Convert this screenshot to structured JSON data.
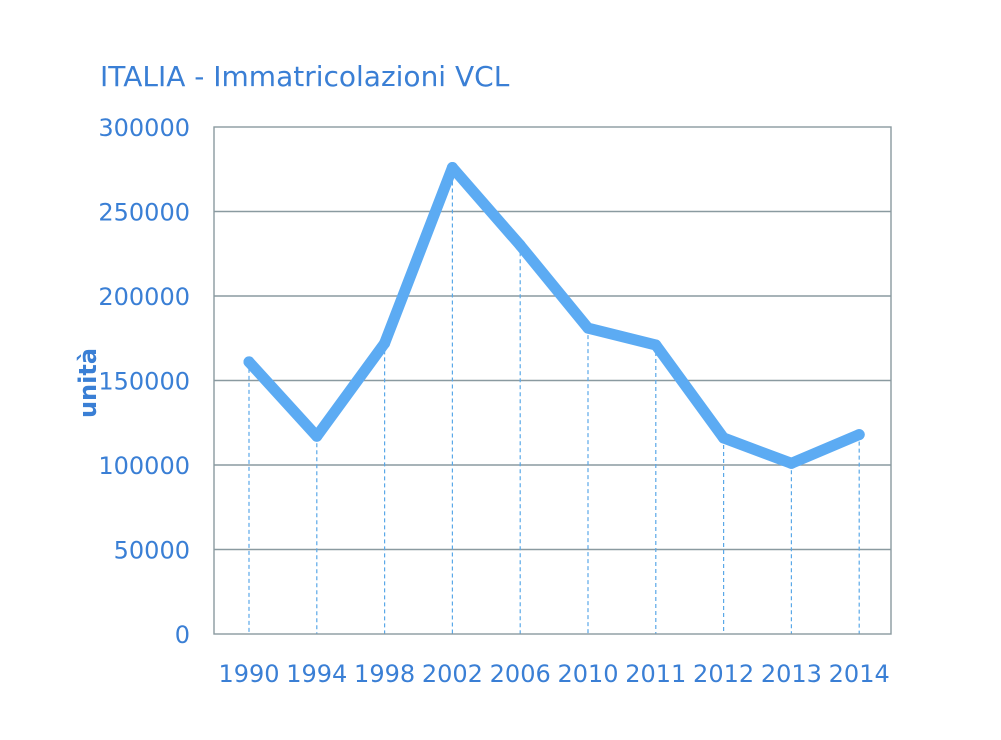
{
  "colors": {
    "text": "#3a7fd5",
    "series": "#5cabf3",
    "grid": "#8a9aa0",
    "drop_line": "#5aa8e8",
    "background": "#ffffff"
  },
  "chart_data": {
    "type": "line",
    "title": "ITALIA - Immatricolazioni VCL",
    "xlabel": "",
    "ylabel": "unità",
    "categories": [
      "1990",
      "1994",
      "1998",
      "2002",
      "2006",
      "2010",
      "2011",
      "2012",
      "2013",
      "2014"
    ],
    "series": [
      {
        "values": [
          161000,
          117000,
          172000,
          276000,
          230000,
          181000,
          171000,
          116000,
          101000,
          118000
        ]
      }
    ],
    "ylim": [
      0,
      300000
    ],
    "yticks": [
      "0",
      "50000",
      "100000",
      "150000",
      "200000",
      "250000",
      "300000"
    ],
    "grid": "horizontal",
    "drop_lines": true,
    "legend": "none"
  }
}
